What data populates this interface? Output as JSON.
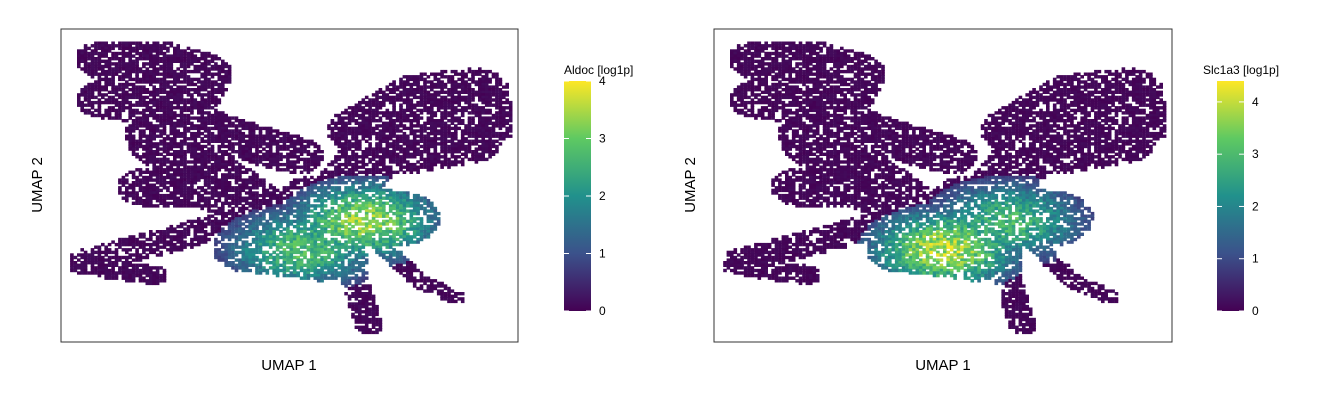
{
  "chart_data": [
    {
      "type": "scatter",
      "title": "",
      "xlabel": "UMAP 1",
      "ylabel": "UMAP 2",
      "x_ticks_shown": false,
      "y_ticks_shown": false,
      "grid": false,
      "colormap": [
        "#440154",
        "#3b528b",
        "#21918c",
        "#5ec962",
        "#fde725"
      ],
      "colorbar": {
        "title": "Aldoc [log1p]",
        "range": [
          0,
          4
        ],
        "ticks": [
          "0",
          "1",
          "2",
          "3",
          "4"
        ]
      },
      "hotspots": [
        {
          "name": "right-core",
          "x": 0.66,
          "y": 0.39,
          "level": 3.6
        },
        {
          "name": "center-left-core",
          "x": 0.52,
          "y": 0.3,
          "level": 3.0
        }
      ]
    },
    {
      "type": "scatter",
      "title": "",
      "xlabel": "UMAP 1",
      "ylabel": "UMAP 2",
      "x_ticks_shown": false,
      "y_ticks_shown": false,
      "grid": false,
      "colormap": [
        "#440154",
        "#3b528b",
        "#21918c",
        "#5ec962",
        "#fde725"
      ],
      "colorbar": {
        "title": "Slc1a3 [log1p]",
        "range": [
          0,
          4.4
        ],
        "ticks": [
          "0",
          "1",
          "2",
          "3",
          "4"
        ]
      },
      "hotspots": [
        {
          "name": "center-left-core",
          "x": 0.5,
          "y": 0.3,
          "level": 4.2
        },
        {
          "name": "right-core",
          "x": 0.64,
          "y": 0.39,
          "level": 3.2
        }
      ]
    }
  ]
}
